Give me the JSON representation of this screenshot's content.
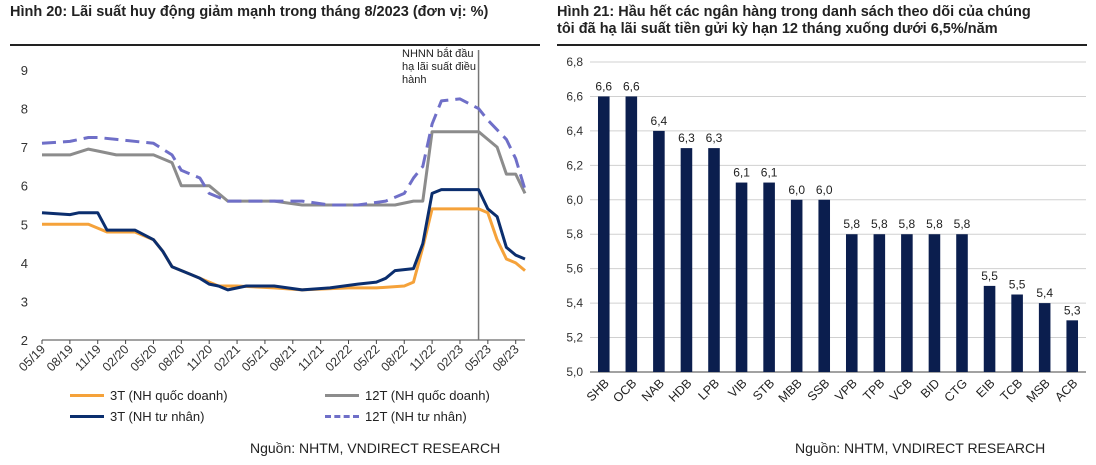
{
  "left": {
    "title": "Hình 20: Lãi suất huy động giảm mạnh trong tháng 8/2023 (đơn vị: %)",
    "source": "Nguồn: NHTM, VNDIRECT RESEARCH",
    "annotation": [
      "NHNN bắt đầu",
      "hạ lãi suất điều",
      "hành"
    ]
  },
  "right": {
    "title_line1": "Hình 21: Hầu hết các ngân hàng trong danh sách theo dõi của chúng",
    "title_line2": "tôi đã hạ lãi suất tiền gửi kỳ hạn 12 tháng xuống dưới 6,5%/năm",
    "source": "Nguồn:  NHTM, VNDIRECT RESEARCH"
  },
  "chart_data": [
    {
      "type": "line",
      "title": "Hình 20: Lãi suất huy động giảm mạnh trong tháng 8/2023 (đơn vị: %)",
      "ylim": [
        2,
        9
      ],
      "yticks": [
        "2",
        "3",
        "4",
        "5",
        "6",
        "7",
        "8",
        "9"
      ],
      "x": [
        "05/19",
        "08/19",
        "11/19",
        "02/20",
        "05/20",
        "08/20",
        "11/20",
        "02/21",
        "05/21",
        "08/21",
        "11/21",
        "02/22",
        "05/22",
        "08/22",
        "11/22",
        "02/23",
        "05/23",
        "08/23"
      ],
      "xlim": [
        "05/19",
        "09/23"
      ],
      "annotation_x": "04/23",
      "legend": "bottom",
      "series": [
        {
          "name": "3T (NH quốc doanh)",
          "color": "#F5A23A",
          "dash": false,
          "points": [
            [
              "05/19",
              5.0
            ],
            [
              "10/19",
              5.0
            ],
            [
              "12/19",
              4.8
            ],
            [
              "03/20",
              4.8
            ],
            [
              "05/20",
              4.6
            ],
            [
              "06/20",
              4.3
            ],
            [
              "07/20",
              3.9
            ],
            [
              "09/20",
              3.7
            ],
            [
              "10/20",
              3.6
            ],
            [
              "11/20",
              3.5
            ],
            [
              "12/20",
              3.4
            ],
            [
              "02/21",
              3.4
            ],
            [
              "06/21",
              3.35
            ],
            [
              "09/21",
              3.3
            ],
            [
              "02/22",
              3.35
            ],
            [
              "05/22",
              3.35
            ],
            [
              "08/22",
              3.4
            ],
            [
              "09/22",
              3.5
            ],
            [
              "10/22",
              4.4
            ],
            [
              "11/22",
              5.4
            ],
            [
              "04/23",
              5.4
            ],
            [
              "05/23",
              5.3
            ],
            [
              "06/23",
              4.6
            ],
            [
              "07/23",
              4.1
            ],
            [
              "08/23",
              4.0
            ],
            [
              "09/23",
              3.8
            ]
          ]
        },
        {
          "name": "12T (NH quốc doanh)",
          "color": "#8C8C8C",
          "dash": false,
          "points": [
            [
              "05/19",
              6.8
            ],
            [
              "08/19",
              6.8
            ],
            [
              "10/19",
              6.95
            ],
            [
              "11/19",
              6.9
            ],
            [
              "01/20",
              6.8
            ],
            [
              "05/20",
              6.8
            ],
            [
              "07/20",
              6.6
            ],
            [
              "08/20",
              6.0
            ],
            [
              "11/20",
              6.0
            ],
            [
              "12/20",
              5.8
            ],
            [
              "01/21",
              5.6
            ],
            [
              "06/21",
              5.6
            ],
            [
              "09/21",
              5.5
            ],
            [
              "07/22",
              5.5
            ],
            [
              "09/22",
              5.6
            ],
            [
              "10/22",
              5.6
            ],
            [
              "11/22",
              7.4
            ],
            [
              "04/23",
              7.4
            ],
            [
              "05/23",
              7.2
            ],
            [
              "06/23",
              7.0
            ],
            [
              "07/23",
              6.3
            ],
            [
              "08/23",
              6.3
            ],
            [
              "09/23",
              5.8
            ]
          ]
        },
        {
          "name": "3T (NH tư nhân)",
          "color": "#0B2E6E",
          "dash": false,
          "points": [
            [
              "05/19",
              5.3
            ],
            [
              "08/19",
              5.25
            ],
            [
              "09/19",
              5.3
            ],
            [
              "11/19",
              5.3
            ],
            [
              "12/19",
              4.85
            ],
            [
              "03/20",
              4.85
            ],
            [
              "05/20",
              4.6
            ],
            [
              "06/20",
              4.3
            ],
            [
              "07/20",
              3.9
            ],
            [
              "09/20",
              3.7
            ],
            [
              "10/20",
              3.6
            ],
            [
              "11/20",
              3.45
            ],
            [
              "12/20",
              3.4
            ],
            [
              "01/21",
              3.3
            ],
            [
              "03/21",
              3.4
            ],
            [
              "06/21",
              3.4
            ],
            [
              "09/21",
              3.3
            ],
            [
              "12/21",
              3.35
            ],
            [
              "03/22",
              3.45
            ],
            [
              "05/22",
              3.5
            ],
            [
              "06/22",
              3.6
            ],
            [
              "07/22",
              3.8
            ],
            [
              "09/22",
              3.85
            ],
            [
              "10/22",
              4.5
            ],
            [
              "11/22",
              5.8
            ],
            [
              "12/22",
              5.9
            ],
            [
              "04/23",
              5.9
            ],
            [
              "05/23",
              5.4
            ],
            [
              "06/23",
              5.2
            ],
            [
              "07/23",
              4.4
            ],
            [
              "08/23",
              4.2
            ],
            [
              "09/23",
              4.1
            ]
          ]
        },
        {
          "name": "12T (NH tư nhân)",
          "color": "#6F6FC8",
          "dash": true,
          "points": [
            [
              "05/19",
              7.1
            ],
            [
              "08/19",
              7.15
            ],
            [
              "10/19",
              7.25
            ],
            [
              "11/19",
              7.25
            ],
            [
              "01/20",
              7.2
            ],
            [
              "05/20",
              7.1
            ],
            [
              "07/20",
              6.8
            ],
            [
              "08/20",
              6.4
            ],
            [
              "10/20",
              6.2
            ],
            [
              "11/20",
              5.8
            ],
            [
              "01/21",
              5.6
            ],
            [
              "06/21",
              5.6
            ],
            [
              "09/21",
              5.6
            ],
            [
              "12/21",
              5.5
            ],
            [
              "03/22",
              5.5
            ],
            [
              "06/22",
              5.6
            ],
            [
              "08/22",
              5.8
            ],
            [
              "09/22",
              6.2
            ],
            [
              "10/22",
              6.5
            ],
            [
              "11/22",
              7.6
            ],
            [
              "12/22",
              8.2
            ],
            [
              "02/23",
              8.25
            ],
            [
              "04/23",
              8.0
            ],
            [
              "05/23",
              7.7
            ],
            [
              "07/23",
              7.2
            ],
            [
              "08/23",
              6.7
            ],
            [
              "09/23",
              5.9
            ]
          ]
        }
      ]
    },
    {
      "type": "bar",
      "title": "Hình 21: Hầu hết các ngân hàng trong danh sách theo dõi của chúng tôi đã hạ lãi suất tiền gửi kỳ hạn 12 tháng xuống dưới 6,5%/năm",
      "categories": [
        "SHB",
        "OCB",
        "NAB",
        "HDB",
        "LPB",
        "VIB",
        "STB",
        "MBB",
        "SSB",
        "VPB",
        "TPB",
        "VCB",
        "BID",
        "CTG",
        "EIB",
        "TCB",
        "MSB",
        "ACB"
      ],
      "values": [
        6.6,
        6.6,
        6.4,
        6.3,
        6.3,
        6.1,
        6.1,
        6.0,
        6.0,
        5.8,
        5.8,
        5.8,
        5.8,
        5.8,
        5.5,
        5.45,
        5.4,
        5.3
      ],
      "labels": [
        "6,6",
        "6,6",
        "6,4",
        "6,3",
        "6,3",
        "6,1",
        "6,1",
        "6,0",
        "6,0",
        "5,8",
        "5,8",
        "5,8",
        "5,8",
        "5,8",
        "5,5",
        "5,5",
        "5,4",
        "5,3"
      ],
      "ylim": [
        5.0,
        6.8
      ],
      "yticks": [
        "5,0",
        "5,2",
        "5,4",
        "5,6",
        "5,8",
        "6,0",
        "6,2",
        "6,4",
        "6,6",
        "6,8"
      ],
      "color": "#0B1E4E",
      "grid": true
    }
  ]
}
